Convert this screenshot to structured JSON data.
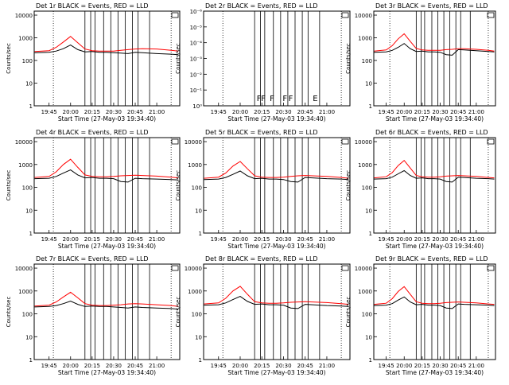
{
  "figure": {
    "ylabel": "Counts/sec",
    "xlabel": "Start Time (27-May-03 19:34:40)",
    "xticks": [
      "19:45",
      "20:00",
      "20:15",
      "20:30",
      "20:45",
      "21:00"
    ],
    "log_yticks": [
      "1",
      "10",
      "100",
      "1000",
      "10000"
    ],
    "colors": {
      "events": "#000000",
      "lld": "#ff0000",
      "frame": "#000000"
    }
  },
  "chart_data": [
    {
      "type": "line",
      "title": "Det 1r BLACK = Events, RED = LLD",
      "xlim": [
        "19:34:40",
        "21:16"
      ],
      "ylog": true,
      "ylim": [
        1,
        15000
      ],
      "series": [
        {
          "name": "BLACK = Events",
          "x": [
            "19:35",
            "19:45",
            "19:50",
            "19:55",
            "20:00",
            "20:05",
            "20:10",
            "20:15",
            "20:20",
            "20:25",
            "20:30",
            "20:35",
            "20:40",
            "20:45",
            "20:50",
            "21:00",
            "21:10",
            "21:15"
          ],
          "y": [
            220,
            230,
            260,
            330,
            480,
            300,
            240,
            250,
            230,
            230,
            220,
            210,
            200,
            230,
            220,
            200,
            190,
            180
          ]
        },
        {
          "name": "RED = LLD",
          "x": [
            "19:35",
            "19:45",
            "19:50",
            "19:55",
            "20:00",
            "20:05",
            "20:10",
            "20:15",
            "20:20",
            "20:25",
            "20:30",
            "20:35",
            "20:40",
            "20:45",
            "20:50",
            "21:00",
            "21:10",
            "21:15"
          ],
          "y": [
            250,
            270,
            380,
            650,
            1150,
            600,
            320,
            270,
            260,
            260,
            260,
            280,
            300,
            320,
            330,
            320,
            280,
            260
          ]
        }
      ]
    },
    {
      "type": "line",
      "title": "Det 2r BLACK = Events, RED = LLD",
      "xlim": [
        "19:34:40",
        "21:16"
      ],
      "ylog": true,
      "ylim": [
        1,
        1e-06
      ],
      "yticks": [
        "10⁰",
        "10⁻¹",
        "10⁻²",
        "10⁻³",
        "10⁻⁴",
        "10⁻⁵",
        "10⁻⁶"
      ],
      "markers": [
        "F",
        "F",
        "F",
        "F",
        "F",
        "E"
      ],
      "series": []
    },
    {
      "type": "line",
      "title": "Det 3r BLACK = Events, RED = LLD",
      "xlim": [
        "19:34:40",
        "21:16"
      ],
      "ylog": true,
      "ylim": [
        1,
        15000
      ],
      "series": [
        {
          "name": "BLACK = Events",
          "x": [
            "19:35",
            "19:45",
            "19:50",
            "19:55",
            "20:00",
            "20:05",
            "20:10",
            "20:15",
            "20:20",
            "20:25",
            "20:30",
            "20:35",
            "20:40",
            "20:45",
            "20:50",
            "21:00",
            "21:10",
            "21:15"
          ],
          "y": [
            230,
            240,
            280,
            380,
            560,
            330,
            250,
            260,
            240,
            240,
            230,
            180,
            170,
            300,
            290,
            270,
            250,
            240
          ]
        },
        {
          "name": "RED = LLD",
          "x": [
            "19:35",
            "19:45",
            "19:50",
            "19:55",
            "20:00",
            "20:05",
            "20:10",
            "20:15",
            "20:20",
            "20:25",
            "20:30",
            "20:35",
            "20:40",
            "20:45",
            "20:50",
            "21:00",
            "21:10",
            "21:15"
          ],
          "y": [
            260,
            290,
            450,
            900,
            1500,
            700,
            340,
            290,
            280,
            280,
            280,
            300,
            310,
            330,
            330,
            310,
            280,
            260
          ]
        }
      ]
    },
    {
      "type": "line",
      "title": "Det 4r BLACK = Events, RED = LLD",
      "xlim": [
        "19:34:40",
        "21:16"
      ],
      "ylog": true,
      "ylim": [
        1,
        15000
      ],
      "series": [
        {
          "name": "BLACK = Events",
          "x": [
            "19:35",
            "19:45",
            "19:50",
            "19:55",
            "20:00",
            "20:05",
            "20:10",
            "20:15",
            "20:20",
            "20:25",
            "20:30",
            "20:35",
            "20:40",
            "20:45",
            "20:50",
            "21:00",
            "21:10",
            "21:15"
          ],
          "y": [
            240,
            250,
            300,
            420,
            580,
            350,
            260,
            270,
            250,
            250,
            240,
            180,
            170,
            250,
            240,
            230,
            220,
            210
          ]
        },
        {
          "name": "RED = LLD",
          "x": [
            "19:35",
            "19:45",
            "19:50",
            "19:55",
            "20:00",
            "20:05",
            "20:10",
            "20:15",
            "20:20",
            "20:25",
            "20:30",
            "20:35",
            "20:40",
            "20:45",
            "20:50",
            "21:00",
            "21:10",
            "21:15"
          ],
          "y": [
            270,
            300,
            480,
            1000,
            1700,
            750,
            350,
            300,
            290,
            290,
            300,
            320,
            330,
            340,
            330,
            310,
            280,
            260
          ]
        }
      ]
    },
    {
      "type": "line",
      "title": "Det 5r BLACK = Events, RED = LLD",
      "xlim": [
        "19:34:40",
        "21:16"
      ],
      "ylog": true,
      "ylim": [
        1,
        15000
      ],
      "series": [
        {
          "name": "BLACK = Events",
          "x": [
            "19:35",
            "19:45",
            "19:50",
            "19:55",
            "20:00",
            "20:05",
            "20:10",
            "20:15",
            "20:20",
            "20:25",
            "20:30",
            "20:35",
            "20:40",
            "20:45",
            "20:50",
            "21:00",
            "21:10",
            "21:15"
          ],
          "y": [
            220,
            230,
            270,
            370,
            520,
            320,
            240,
            250,
            230,
            230,
            220,
            180,
            170,
            270,
            260,
            240,
            230,
            220
          ]
        },
        {
          "name": "RED = LLD",
          "x": [
            "19:35",
            "19:45",
            "19:50",
            "19:55",
            "20:00",
            "20:05",
            "20:10",
            "20:15",
            "20:20",
            "20:25",
            "20:30",
            "20:35",
            "20:40",
            "20:45",
            "20:50",
            "21:00",
            "21:10",
            "21:15"
          ],
          "y": [
            250,
            280,
            420,
            850,
            1350,
            650,
            320,
            280,
            270,
            270,
            280,
            300,
            320,
            330,
            320,
            300,
            270,
            250
          ]
        }
      ]
    },
    {
      "type": "line",
      "title": "Det 6r BLACK = Events, RED = LLD",
      "xlim": [
        "19:34:40",
        "21:16"
      ],
      "ylog": true,
      "ylim": [
        1,
        15000
      ],
      "series": [
        {
          "name": "BLACK = Events",
          "x": [
            "19:35",
            "19:45",
            "19:50",
            "19:55",
            "20:00",
            "20:05",
            "20:10",
            "20:15",
            "20:20",
            "20:25",
            "20:30",
            "20:35",
            "20:40",
            "20:45",
            "20:50",
            "21:00",
            "21:10",
            "21:15"
          ],
          "y": [
            230,
            240,
            280,
            390,
            540,
            330,
            250,
            260,
            240,
            240,
            230,
            180,
            170,
            280,
            270,
            250,
            240,
            230
          ]
        },
        {
          "name": "RED = LLD",
          "x": [
            "19:35",
            "19:45",
            "19:50",
            "19:55",
            "20:00",
            "20:05",
            "20:10",
            "20:15",
            "20:20",
            "20:25",
            "20:30",
            "20:35",
            "20:40",
            "20:45",
            "20:50",
            "21:00",
            "21:10",
            "21:15"
          ],
          "y": [
            260,
            290,
            440,
            900,
            1500,
            700,
            330,
            290,
            280,
            280,
            290,
            310,
            320,
            330,
            320,
            300,
            270,
            260
          ]
        }
      ]
    },
    {
      "type": "line",
      "title": "Det 7r BLACK = Events, RED = LLD",
      "xlim": [
        "19:34:40",
        "21:16"
      ],
      "ylog": true,
      "ylim": [
        1,
        15000
      ],
      "series": [
        {
          "name": "BLACK = Events",
          "x": [
            "19:35",
            "19:45",
            "19:50",
            "19:55",
            "20:00",
            "20:05",
            "20:10",
            "20:15",
            "20:20",
            "20:25",
            "20:30",
            "20:35",
            "20:40",
            "20:45",
            "20:50",
            "21:00",
            "21:10",
            "21:15"
          ],
          "y": [
            200,
            210,
            230,
            280,
            360,
            260,
            210,
            220,
            210,
            210,
            200,
            190,
            180,
            200,
            190,
            180,
            170,
            160
          ]
        },
        {
          "name": "RED = LLD",
          "x": [
            "19:35",
            "19:45",
            "19:50",
            "19:55",
            "20:00",
            "20:05",
            "20:10",
            "20:15",
            "20:20",
            "20:25",
            "20:30",
            "20:35",
            "20:40",
            "20:45",
            "20:50",
            "21:00",
            "21:10",
            "21:15"
          ],
          "y": [
            220,
            240,
            330,
            550,
            880,
            500,
            280,
            240,
            230,
            230,
            240,
            250,
            270,
            280,
            270,
            250,
            230,
            210
          ]
        }
      ]
    },
    {
      "type": "line",
      "title": "Det 8r BLACK = Events, RED = LLD",
      "xlim": [
        "19:34:40",
        "21:16"
      ],
      "ylog": true,
      "ylim": [
        1,
        15000
      ],
      "series": [
        {
          "name": "BLACK = Events",
          "x": [
            "19:35",
            "19:45",
            "19:50",
            "19:55",
            "20:00",
            "20:05",
            "20:10",
            "20:15",
            "20:20",
            "20:25",
            "20:30",
            "20:35",
            "20:40",
            "20:45",
            "20:50",
            "21:00",
            "21:10",
            "21:15"
          ],
          "y": [
            240,
            250,
            300,
            420,
            580,
            350,
            260,
            270,
            250,
            250,
            240,
            180,
            170,
            260,
            250,
            230,
            220,
            210
          ]
        },
        {
          "name": "RED = LLD",
          "x": [
            "19:35",
            "19:45",
            "19:50",
            "19:55",
            "20:00",
            "20:05",
            "20:10",
            "20:15",
            "20:20",
            "20:25",
            "20:30",
            "20:35",
            "20:40",
            "20:45",
            "20:50",
            "21:00",
            "21:10",
            "21:15"
          ],
          "y": [
            270,
            300,
            480,
            1000,
            1600,
            720,
            340,
            300,
            290,
            290,
            300,
            320,
            330,
            340,
            330,
            310,
            280,
            260
          ]
        }
      ]
    },
    {
      "type": "line",
      "title": "Det 9r BLACK = Events, RED = LLD",
      "xlim": [
        "19:34:40",
        "21:16"
      ],
      "ylog": true,
      "ylim": [
        1,
        15000
      ],
      "series": [
        {
          "name": "BLACK = Events",
          "x": [
            "19:35",
            "19:45",
            "19:50",
            "19:55",
            "20:00",
            "20:05",
            "20:10",
            "20:15",
            "20:20",
            "20:25",
            "20:30",
            "20:35",
            "20:40",
            "20:45",
            "20:50",
            "21:00",
            "21:10",
            "21:15"
          ],
          "y": [
            230,
            240,
            280,
            400,
            550,
            330,
            250,
            260,
            240,
            240,
            230,
            180,
            170,
            270,
            260,
            250,
            240,
            230
          ]
        },
        {
          "name": "RED = LLD",
          "x": [
            "19:35",
            "19:45",
            "19:50",
            "19:55",
            "20:00",
            "20:05",
            "20:10",
            "20:15",
            "20:20",
            "20:25",
            "20:30",
            "20:35",
            "20:40",
            "20:45",
            "20:50",
            "21:00",
            "21:10",
            "21:15"
          ],
          "y": [
            260,
            290,
            460,
            950,
            1550,
            720,
            340,
            290,
            280,
            280,
            290,
            310,
            320,
            330,
            320,
            300,
            270,
            260
          ]
        }
      ]
    }
  ]
}
